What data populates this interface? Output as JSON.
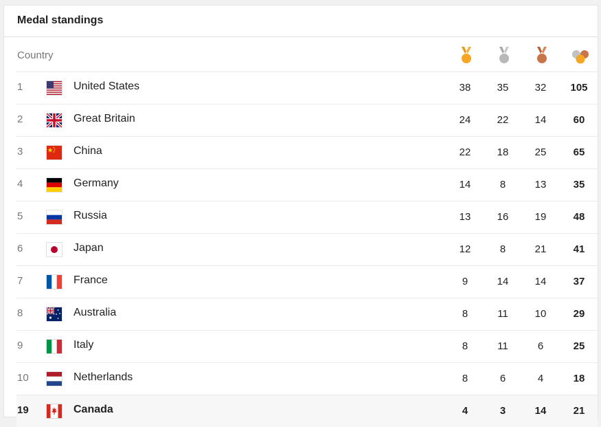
{
  "header": {
    "title": "Medal standings"
  },
  "columns": {
    "country": "Country",
    "gold_icon": "gold-medal-icon",
    "silver_icon": "silver-medal-icon",
    "bronze_icon": "bronze-medal-icon",
    "total_icon": "total-medals-icon"
  },
  "colors": {
    "gold": "#f5a623",
    "silver": "#b8b8b8",
    "bronze": "#c8754a"
  },
  "rows": [
    {
      "rank": "1",
      "country": "United States",
      "flag": "us-flag-icon",
      "gold": "38",
      "silver": "35",
      "bronze": "32",
      "total": "105"
    },
    {
      "rank": "2",
      "country": "Great Britain",
      "flag": "gb-flag-icon",
      "gold": "24",
      "silver": "22",
      "bronze": "14",
      "total": "60"
    },
    {
      "rank": "3",
      "country": "China",
      "flag": "cn-flag-icon",
      "gold": "22",
      "silver": "18",
      "bronze": "25",
      "total": "65"
    },
    {
      "rank": "4",
      "country": "Germany",
      "flag": "de-flag-icon",
      "gold": "14",
      "silver": "8",
      "bronze": "13",
      "total": "35"
    },
    {
      "rank": "5",
      "country": "Russia",
      "flag": "ru-flag-icon",
      "gold": "13",
      "silver": "16",
      "bronze": "19",
      "total": "48"
    },
    {
      "rank": "6",
      "country": "Japan",
      "flag": "jp-flag-icon",
      "gold": "12",
      "silver": "8",
      "bronze": "21",
      "total": "41"
    },
    {
      "rank": "7",
      "country": "France",
      "flag": "fr-flag-icon",
      "gold": "9",
      "silver": "14",
      "bronze": "14",
      "total": "37"
    },
    {
      "rank": "8",
      "country": "Australia",
      "flag": "au-flag-icon",
      "gold": "8",
      "silver": "11",
      "bronze": "10",
      "total": "29"
    },
    {
      "rank": "9",
      "country": "Italy",
      "flag": "it-flag-icon",
      "gold": "8",
      "silver": "11",
      "bronze": "6",
      "total": "25"
    },
    {
      "rank": "10",
      "country": "Netherlands",
      "flag": "nl-flag-icon",
      "gold": "8",
      "silver": "6",
      "bronze": "4",
      "total": "18"
    },
    {
      "rank": "19",
      "country": "Canada",
      "flag": "ca-flag-icon",
      "gold": "4",
      "silver": "3",
      "bronze": "14",
      "total": "21",
      "highlighted": true
    }
  ]
}
